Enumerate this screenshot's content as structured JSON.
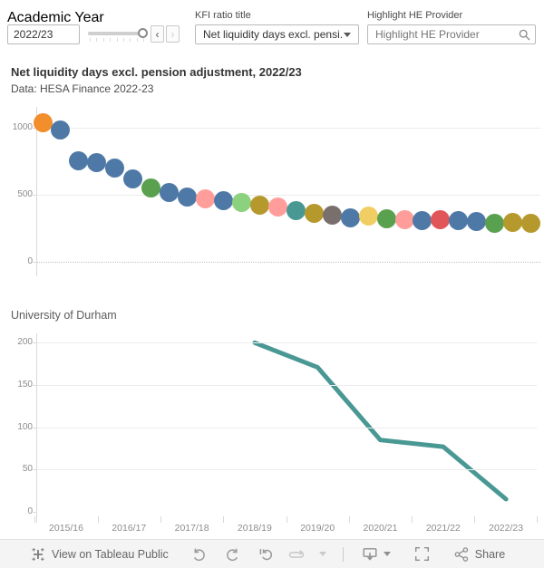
{
  "filters": {
    "academic_year": {
      "label": "Academic Year",
      "value": "2022/23"
    },
    "kfi_ratio": {
      "label": "KFI ratio title",
      "selected": "Net liquidity days excl. pensi..."
    },
    "highlight_provider": {
      "label": "Highlight HE Provider",
      "placeholder": "Highlight HE Provider"
    }
  },
  "header": {
    "title": "Net liquidity days excl. pension adjustment, 2022/23",
    "subtitle": "Data: HESA Finance 2022-23"
  },
  "palette": {
    "blue": "#4E79A7",
    "orange": "#F28E2B",
    "green": "#59A14F",
    "lightgreen": "#8CD17D",
    "olive": "#B6992D",
    "yellow": "#F1CE63",
    "teal": "#499894",
    "gray": "#79706E",
    "red": "#E15759",
    "pink": "#FF9D9A"
  },
  "chart_data": [
    {
      "type": "scatter",
      "title": "Net liquidity days excl. pension adjustment by HE provider (sorted descending)",
      "yticks": [
        0,
        500,
        1000
      ],
      "ylim": [
        -150,
        1150
      ],
      "grid": "on",
      "points": [
        {
          "value": 1040,
          "color": "orange"
        },
        {
          "value": 985,
          "color": "blue"
        },
        {
          "value": 752,
          "color": "blue"
        },
        {
          "value": 738,
          "color": "blue"
        },
        {
          "value": 698,
          "color": "blue"
        },
        {
          "value": 616,
          "color": "blue"
        },
        {
          "value": 554,
          "color": "green"
        },
        {
          "value": 519,
          "color": "blue"
        },
        {
          "value": 481,
          "color": "blue"
        },
        {
          "value": 467,
          "color": "pink"
        },
        {
          "value": 459,
          "color": "blue"
        },
        {
          "value": 440,
          "color": "lightgreen"
        },
        {
          "value": 420,
          "color": "olive"
        },
        {
          "value": 408,
          "color": "pink"
        },
        {
          "value": 379,
          "color": "teal"
        },
        {
          "value": 359,
          "color": "olive"
        },
        {
          "value": 351,
          "color": "gray"
        },
        {
          "value": 331,
          "color": "blue"
        },
        {
          "value": 339,
          "color": "yellow"
        },
        {
          "value": 324,
          "color": "green"
        },
        {
          "value": 312,
          "color": "pink"
        },
        {
          "value": 309,
          "color": "blue"
        },
        {
          "value": 316,
          "color": "red"
        },
        {
          "value": 309,
          "color": "blue"
        },
        {
          "value": 304,
          "color": "blue"
        },
        {
          "value": 290,
          "color": "green"
        },
        {
          "value": 296,
          "color": "olive"
        },
        {
          "value": 288,
          "color": "olive"
        }
      ]
    },
    {
      "type": "line",
      "title": "University of Durham",
      "categories": [
        "2015/16",
        "2016/17",
        "2017/18",
        "2018/19",
        "2019/20",
        "2020/21",
        "2021/22",
        "2022/23"
      ],
      "values": [
        null,
        null,
        null,
        200,
        171,
        85,
        77,
        15
      ],
      "yticks": [
        0,
        50,
        100,
        150,
        200
      ],
      "ylim": [
        0,
        215
      ],
      "grid": "on",
      "line_color": "#499894"
    }
  ],
  "toolbar": {
    "view_on_label": "View on Tableau Public",
    "share_label": "Share",
    "icons": [
      "tableau-logo",
      "undo",
      "redo",
      "revert",
      "refresh",
      "more-caret",
      "download",
      "fullscreen",
      "share"
    ]
  }
}
